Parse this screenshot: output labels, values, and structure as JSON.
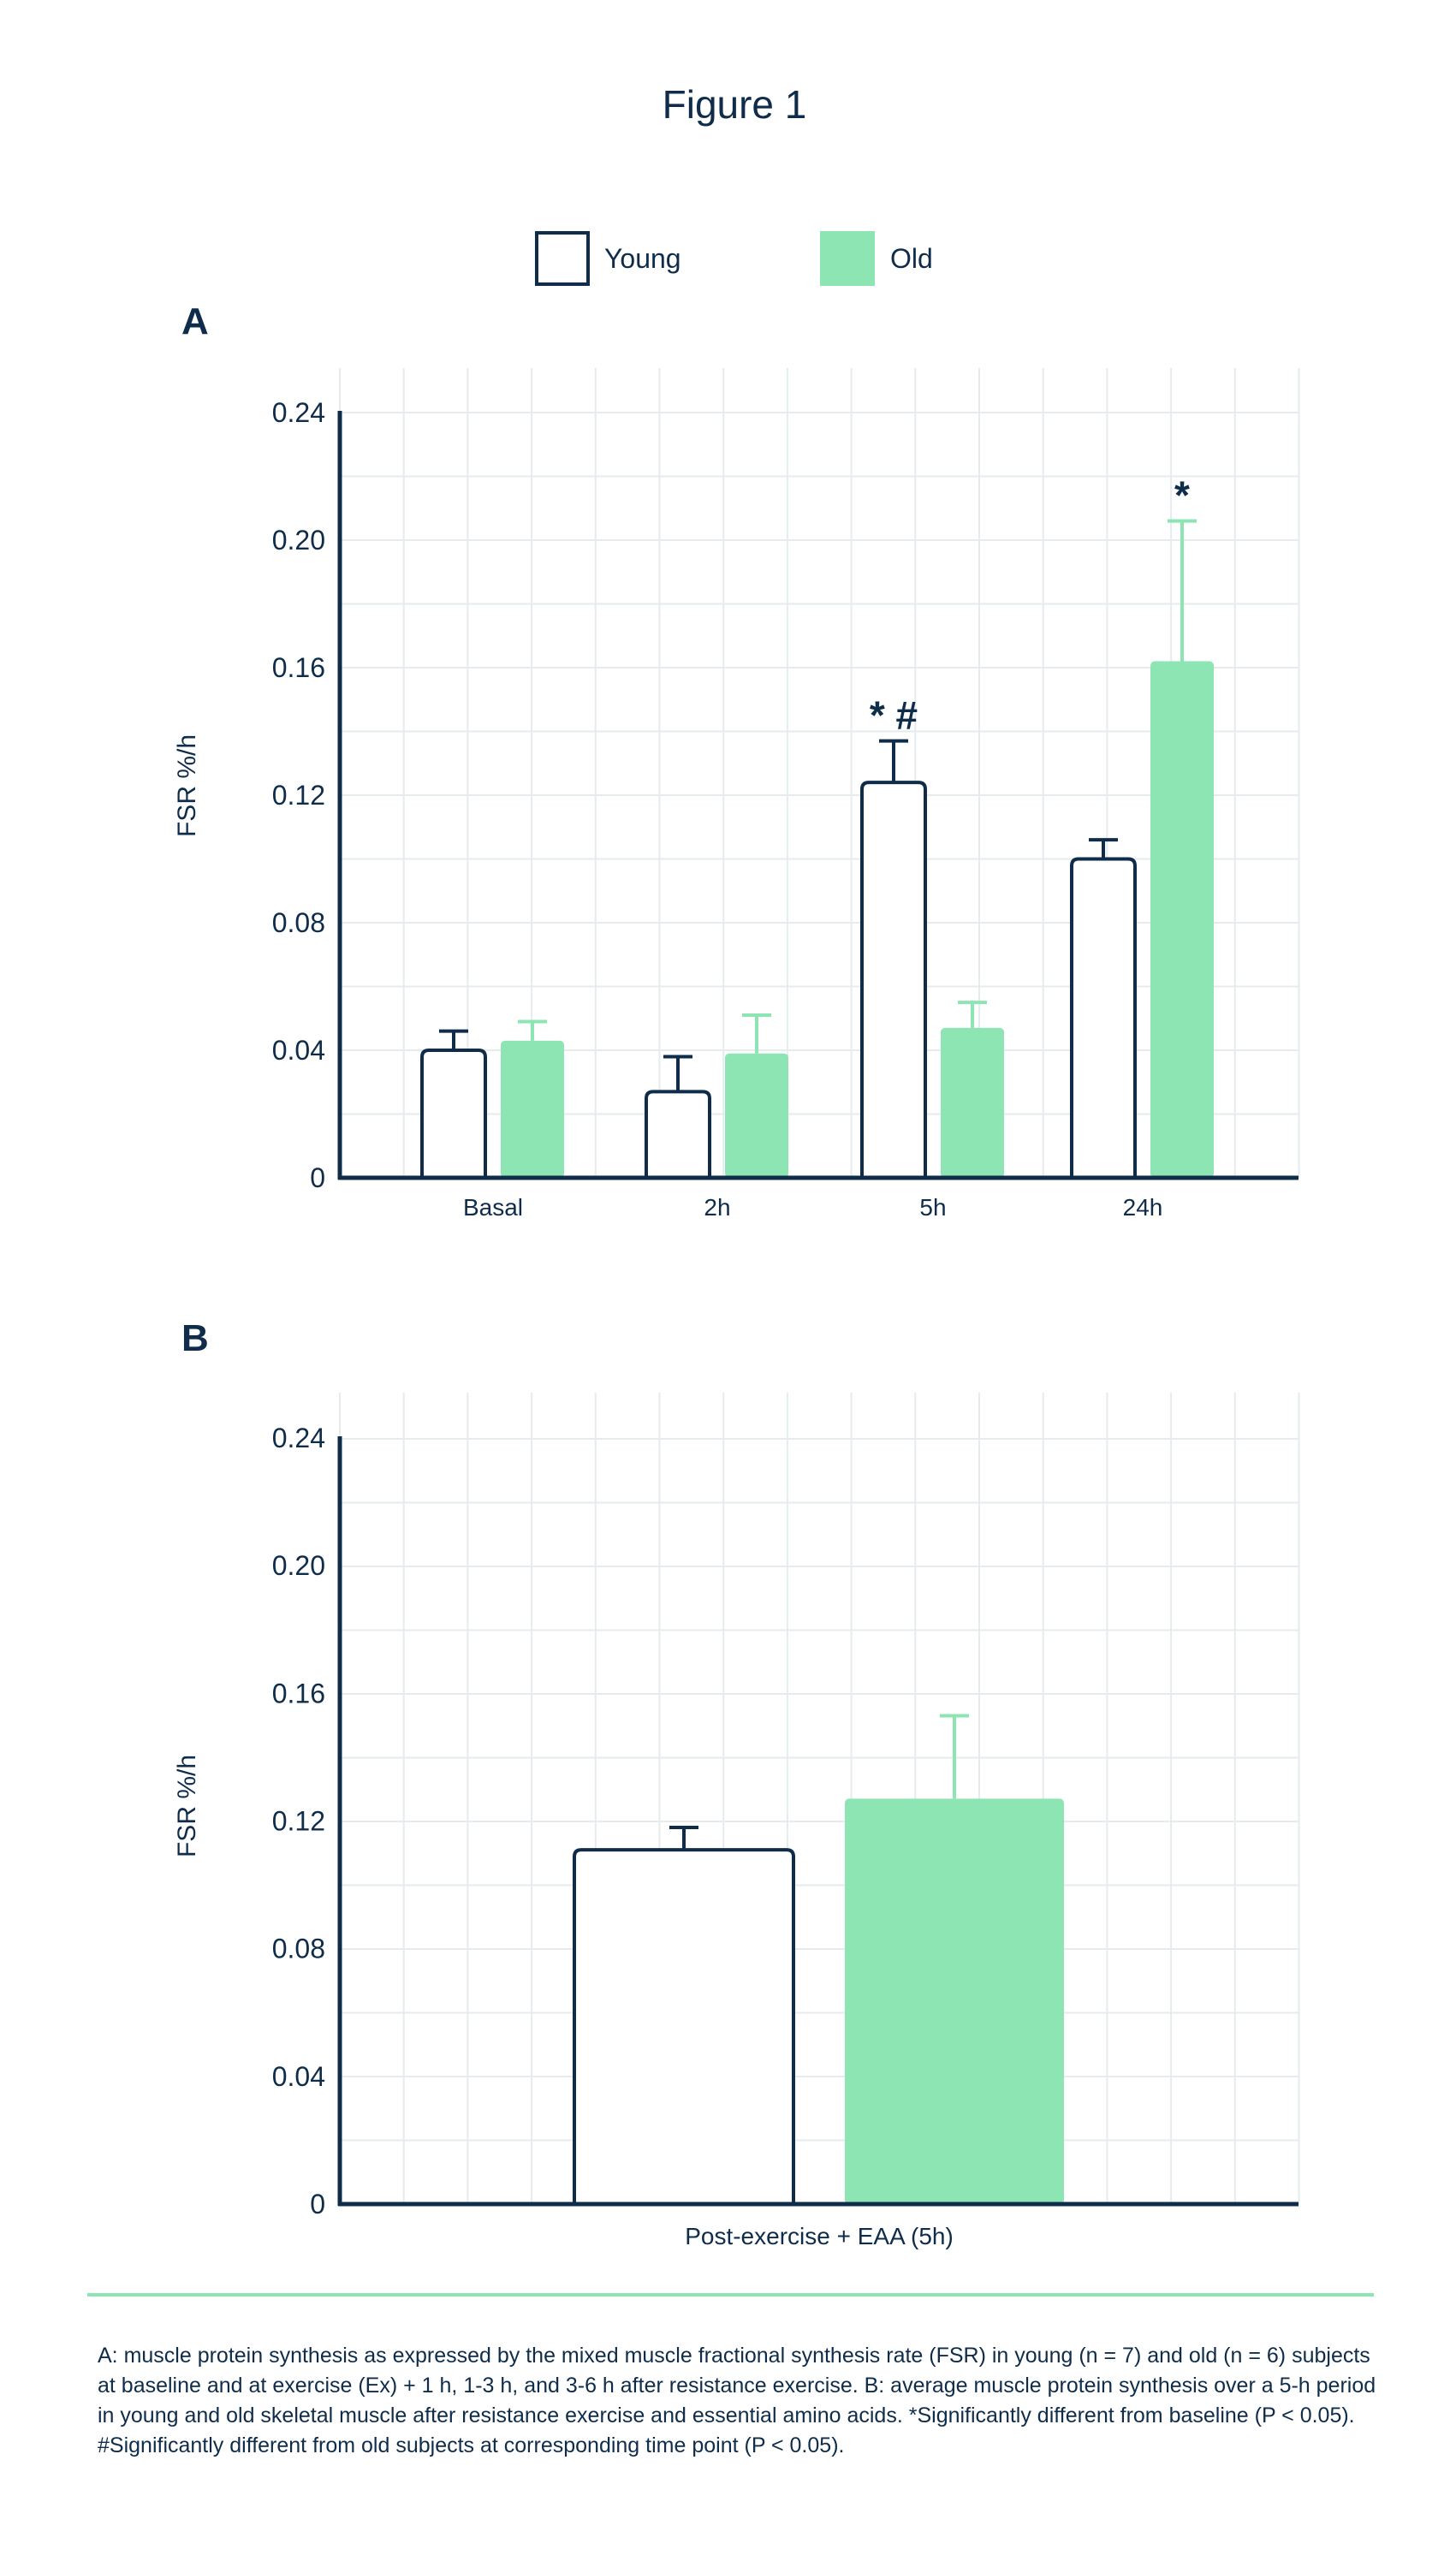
{
  "figure_title": "Figure 1",
  "colors": {
    "young_stroke": "#0f2d4a",
    "old_fill": "#8de5b3",
    "grid": "#e6ebee",
    "axis": "#0f2d4a",
    "divider": "#8de5b3"
  },
  "legend": [
    {
      "name": "Young",
      "style": "outline"
    },
    {
      "name": "Old",
      "style": "filled"
    }
  ],
  "chart_data": [
    {
      "panel_label": "A",
      "type": "bar",
      "ylabel": "FSR %/h",
      "xlabel": "",
      "ylim": [
        0,
        0.24
      ],
      "yticks": [
        0,
        0.04,
        0.08,
        0.12,
        0.16,
        0.2,
        0.24
      ],
      "ytick_labels": [
        "0",
        "0.04",
        "0.08",
        "0.12",
        "0.16",
        "0.20",
        "0.24"
      ],
      "categories": [
        "Basal",
        "2h",
        "5h",
        "24h"
      ],
      "series": [
        {
          "name": "Young",
          "values": [
            0.04,
            0.027,
            0.124,
            0.1
          ],
          "errors": [
            0.006,
            0.011,
            0.013,
            0.006
          ]
        },
        {
          "name": "Old",
          "values": [
            0.043,
            0.039,
            0.047,
            0.162
          ],
          "errors": [
            0.006,
            0.012,
            0.008,
            0.044
          ]
        }
      ],
      "annotations": [
        {
          "category": "5h",
          "series": "Young",
          "text": "* #"
        },
        {
          "category": "24h",
          "series": "Old",
          "text": "*"
        }
      ],
      "grid": true
    },
    {
      "panel_label": "B",
      "type": "bar",
      "ylabel": "FSR %/h",
      "xlabel": "",
      "ylim": [
        0,
        0.24
      ],
      "yticks": [
        0,
        0.04,
        0.08,
        0.12,
        0.16,
        0.2,
        0.24
      ],
      "ytick_labels": [
        "0",
        "0.04",
        "0.08",
        "0.12",
        "0.16",
        "0.20",
        "0.24"
      ],
      "categories": [
        "Post-exercise + EAA (5h)"
      ],
      "series": [
        {
          "name": "Young",
          "values": [
            0.111
          ],
          "errors": [
            0.007
          ]
        },
        {
          "name": "Old",
          "values": [
            0.127
          ],
          "errors": [
            0.026
          ]
        }
      ],
      "annotations": [],
      "grid": true
    }
  ],
  "caption": "A: muscle protein synthesis as expressed by the mixed muscle fractional synthesis rate (FSR) in young (n = 7) and old (n = 6) subjects at baseline and at exercise (Ex) + 1 h, 1-3 h, and 3-6 h after resistance exercise. B: average muscle protein synthesis over a 5-h period in young and old skeletal muscle after resistance exercise and essential amino acids. *Significantly different from baseline (P < 0.05). #Significantly different from old subjects at corresponding time point (P < 0.05)."
}
